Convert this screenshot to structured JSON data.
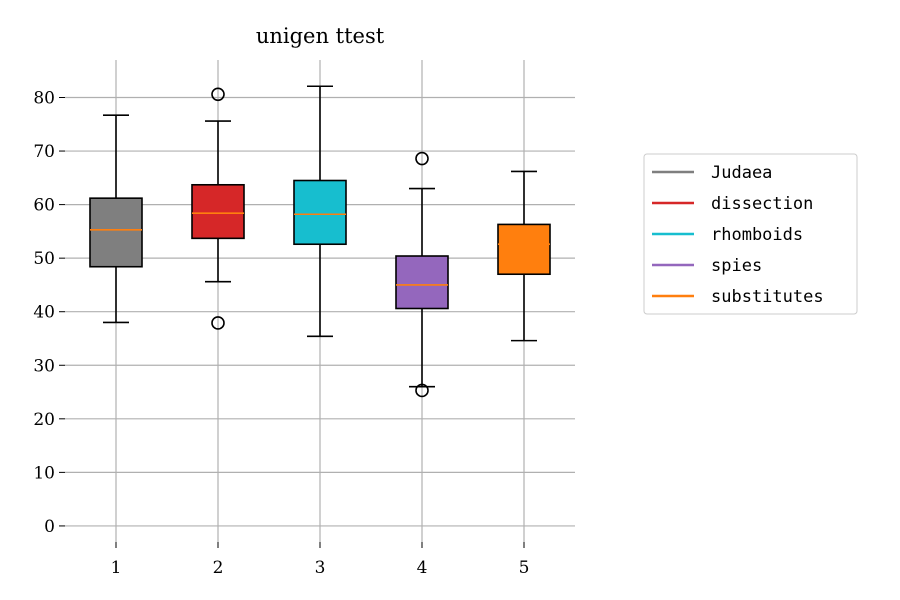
{
  "chart_data": {
    "type": "box",
    "title": "unigen ttest",
    "xlabel": "",
    "ylabel": "",
    "categories": [
      "1",
      "2",
      "3",
      "4",
      "5"
    ],
    "ylim": [
      -3,
      87
    ],
    "yticks": [
      0,
      10,
      20,
      30,
      40,
      50,
      60,
      70,
      80
    ],
    "grid": true,
    "legend_position": "right",
    "series": [
      {
        "name": "Judaea",
        "color": "#7f7f7f",
        "median_color": "#ff7f0e",
        "whislo": 38.0,
        "q1": 48.4,
        "median": 55.3,
        "q3": 61.2,
        "whishi": 76.7,
        "fliers": []
      },
      {
        "name": "dissection",
        "color": "#d62728",
        "median_color": "#ff7f0e",
        "whislo": 45.6,
        "q1": 53.7,
        "median": 58.4,
        "q3": 63.7,
        "whishi": 75.6,
        "fliers": [
          80.6,
          37.9
        ]
      },
      {
        "name": "rhomboids",
        "color": "#17becf",
        "median_color": "#ff7f0e",
        "whislo": 35.4,
        "q1": 52.6,
        "median": 58.2,
        "q3": 64.5,
        "whishi": 82.1,
        "fliers": []
      },
      {
        "name": "spies",
        "color": "#9467bd",
        "median_color": "#ff7f0e",
        "whislo": 26.0,
        "q1": 40.6,
        "median": 45.0,
        "q3": 50.4,
        "whishi": 63.0,
        "fliers": [
          68.6,
          25.3
        ]
      },
      {
        "name": "substitutes",
        "color": "#ff7f0e",
        "median_color": "#ff7f0e",
        "whislo": 34.6,
        "q1": 47.0,
        "median": 52.6,
        "q3": 56.3,
        "whishi": 66.2,
        "fliers": []
      }
    ]
  }
}
